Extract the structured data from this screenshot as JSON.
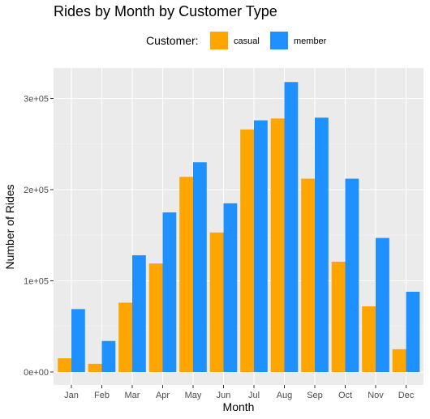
{
  "chart_data": {
    "type": "bar",
    "title": "Rides by Month by Customer Type",
    "xlabel": "Month",
    "ylabel": "Number of Rides",
    "categories": [
      "Jan",
      "Feb",
      "Mar",
      "Apr",
      "May",
      "Jun",
      "Jul",
      "Aug",
      "Sep",
      "Oct",
      "Nov",
      "Dec"
    ],
    "series": [
      {
        "name": "casual",
        "color": "#FFA500",
        "values": [
          15000,
          9000,
          76000,
          119000,
          214000,
          153000,
          266000,
          278000,
          212000,
          121000,
          72000,
          25000
        ]
      },
      {
        "name": "member",
        "color": "#1E90FF",
        "values": [
          69000,
          34000,
          128000,
          175000,
          230000,
          185000,
          276000,
          318000,
          279000,
          212000,
          147000,
          88000
        ]
      }
    ],
    "ylim": [
      0,
      330000
    ],
    "yticks": [
      0,
      100000,
      200000,
      300000
    ],
    "ytick_labels": [
      "0e+00",
      "1e+05",
      "2e+05",
      "3e+05"
    ],
    "legend": {
      "title": "Customer:",
      "position": "top"
    },
    "grid": true
  }
}
